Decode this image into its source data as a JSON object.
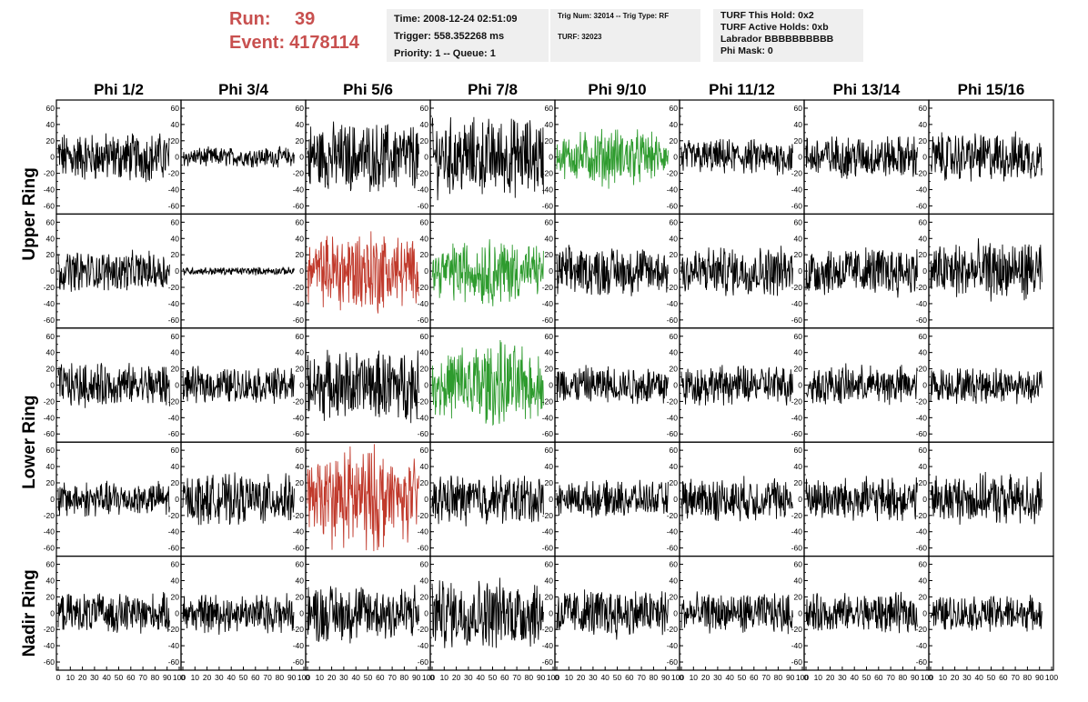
{
  "run": {
    "label": "Run:",
    "value": "39"
  },
  "event": {
    "label": "Event:",
    "value": "4178114"
  },
  "info1": [
    "Time: 2008-12-24 02:51:09",
    "Trigger: 558.352268 ms",
    "Priority: 1 -- Queue: 1"
  ],
  "info2": [
    "Trig Num: 32014 -- Trig Type: RF",
    "TURF: 32023"
  ],
  "info3": [
    "TURF This Hold: 0x2",
    "TURF Active Holds: 0xb",
    "Labrador BBBBBBBBBB",
    "Phi Mask: 0"
  ],
  "colors": {
    "header_red": "#c8504f",
    "normal": "#000000",
    "triggered_red": "#c0392b",
    "triggered_green": "#2e9b2e",
    "box_bg": "#efefef"
  },
  "chart_data": {
    "type": "line",
    "columns": [
      "Phi 1/2",
      "Phi 3/4",
      "Phi 5/6",
      "Phi 7/8",
      "Phi 9/10",
      "Phi 11/12",
      "Phi 13/14",
      "Phi 15/16"
    ],
    "row_labels": [
      {
        "label": "Upper Ring",
        "rows": [
          0,
          1
        ]
      },
      {
        "label": "Lower Ring",
        "rows": [
          2,
          3
        ]
      },
      {
        "label": "Nadir Ring",
        "rows": [
          4
        ]
      }
    ],
    "ylim": [
      -70,
      70
    ],
    "xlim": [
      0,
      100
    ],
    "yticks": [
      -60,
      -40,
      -20,
      0,
      20,
      40,
      60
    ],
    "xticks": [
      0,
      10,
      20,
      30,
      40,
      50,
      60,
      70,
      80,
      90,
      100
    ],
    "xtick_labels": [
      "0",
      "10",
      "20",
      "30",
      "40",
      "50",
      "60",
      "70",
      "80",
      "90",
      "100"
    ],
    "approx_amplitude": [
      [
        25,
        10,
        35,
        40,
        30,
        18,
        22,
        25
      ],
      [
        20,
        4,
        45,
        35,
        25,
        25,
        25,
        30
      ],
      [
        22,
        18,
        35,
        45,
        20,
        20,
        20,
        18
      ],
      [
        18,
        25,
        55,
        25,
        18,
        22,
        22,
        25
      ],
      [
        20,
        20,
        30,
        35,
        25,
        20,
        20,
        18
      ]
    ],
    "highlight": [
      {
        "row": 0,
        "col": 4,
        "color": "green"
      },
      {
        "row": 1,
        "col": 2,
        "color": "red"
      },
      {
        "row": 1,
        "col": 3,
        "color": "green"
      },
      {
        "row": 2,
        "col": 3,
        "color": "green"
      },
      {
        "row": 3,
        "col": 2,
        "color": "red"
      }
    ],
    "grid": false,
    "legend": "none"
  }
}
